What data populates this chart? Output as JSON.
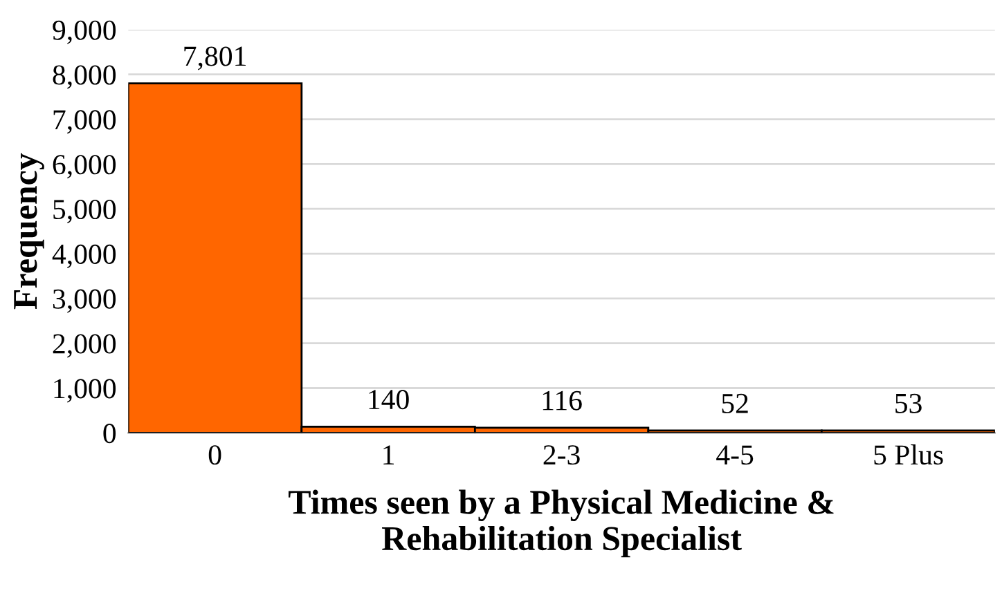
{
  "chart_data": {
    "type": "bar",
    "xlabel": "Times seen by a Physical Medicine &\nRehabilitation Specialist",
    "ylabel": "Frequency",
    "categories": [
      "0",
      "1",
      "2-3",
      "4-5",
      "5 Plus"
    ],
    "values": [
      7801,
      140,
      116,
      52,
      53
    ],
    "color": "#ff6600",
    "ylim": [
      0,
      9000
    ],
    "yticks": [
      {
        "value": 0,
        "label": "0"
      },
      {
        "value": 1000,
        "label": "1,000"
      },
      {
        "value": 2000,
        "label": "2,000"
      },
      {
        "value": 3000,
        "label": "3,000"
      },
      {
        "value": 4000,
        "label": "4,000"
      },
      {
        "value": 5000,
        "label": "5,000"
      },
      {
        "value": 6000,
        "label": "6,000"
      },
      {
        "value": 7000,
        "label": "7,000"
      },
      {
        "value": 8000,
        "label": "8,000"
      },
      {
        "value": 9000,
        "label": "9,000"
      }
    ],
    "value_labels": [
      "7,801",
      "140",
      "116",
      "52",
      "53"
    ],
    "grid": "y",
    "legend": false
  }
}
